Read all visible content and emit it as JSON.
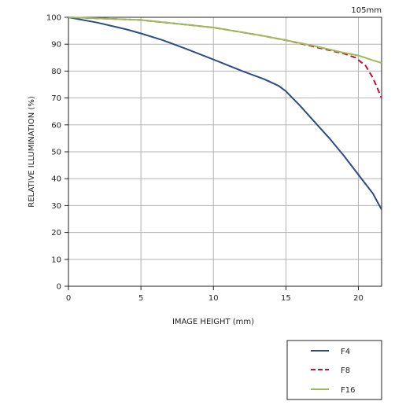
{
  "chart_data": {
    "type": "line",
    "title": "105mm",
    "xlabel": "IMAGE HEIGHT (mm)",
    "ylabel": "RELATIVE ILLUMINATION (%)",
    "xlim": [
      0,
      21.6
    ],
    "ylim": [
      0,
      100
    ],
    "x_ticks": [
      0,
      5,
      10,
      15,
      20
    ],
    "y_ticks": [
      0,
      10,
      20,
      30,
      40,
      50,
      60,
      70,
      80,
      90,
      100
    ],
    "grid": true,
    "legend_position": "bottom-right, below plot",
    "series": [
      {
        "name": "F4",
        "color": "#2b4c86",
        "dash": "solid",
        "points": [
          [
            0,
            100
          ],
          [
            2,
            98
          ],
          [
            4,
            95.5
          ],
          [
            5,
            94
          ],
          [
            6.5,
            91.5
          ],
          [
            8,
            88.5
          ],
          [
            10,
            84.3
          ],
          [
            12,
            80
          ],
          [
            13.5,
            77
          ],
          [
            14.5,
            74.5
          ],
          [
            15,
            72.5
          ],
          [
            16,
            67
          ],
          [
            17,
            61
          ],
          [
            18,
            55
          ],
          [
            19,
            48.5
          ],
          [
            20,
            41.5
          ],
          [
            21,
            34.5
          ],
          [
            21.6,
            28.5
          ]
        ]
      },
      {
        "name": "F8",
        "color": "#c8102e",
        "dash": "dashed",
        "points": [
          [
            0,
            100
          ],
          [
            5,
            99
          ],
          [
            10,
            96.2
          ],
          [
            13,
            93.5
          ],
          [
            15,
            91.5
          ],
          [
            17,
            89
          ],
          [
            19,
            86.5
          ],
          [
            19.8,
            85
          ],
          [
            20.5,
            82
          ],
          [
            21,
            77.5
          ],
          [
            21.6,
            70
          ]
        ]
      },
      {
        "name": "F16",
        "color": "#9bbb59",
        "dash": "solid",
        "points": [
          [
            0,
            100
          ],
          [
            5,
            99
          ],
          [
            10,
            96.2
          ],
          [
            13,
            93.5
          ],
          [
            15,
            91.5
          ],
          [
            17,
            89.3
          ],
          [
            19,
            86.8
          ],
          [
            20,
            85.8
          ],
          [
            21,
            84
          ],
          [
            21.6,
            83
          ]
        ]
      }
    ]
  }
}
